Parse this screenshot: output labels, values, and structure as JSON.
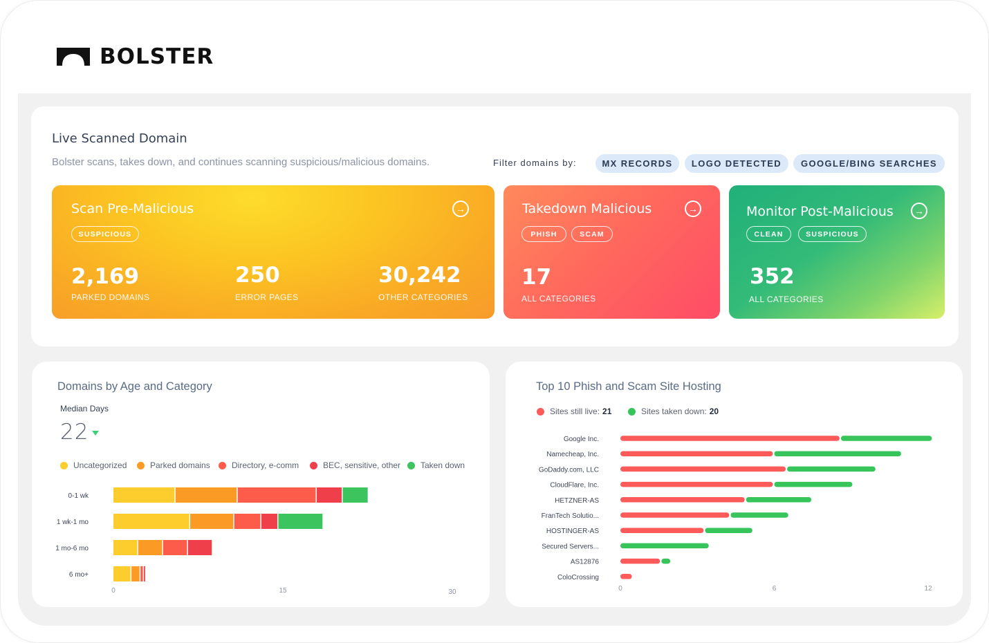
{
  "brand": {
    "name": "BOLSTER"
  },
  "live": {
    "title": "Live Scanned Domain",
    "subtitle": "Bolster scans, takes down, and continues scanning suspicious/malicious domains.",
    "filter_label": "Filter domains by:",
    "filters": [
      "MX RECORDS",
      "LOGO DETECTED",
      "GOOGLE/BING SEARCHES"
    ]
  },
  "cards": {
    "pre": {
      "title": "Scan Pre-Malicious",
      "tags": [
        "SUSPICIOUS"
      ],
      "stats": [
        {
          "value": "2,169",
          "label": "PARKED DOMAINS"
        },
        {
          "value": "250",
          "label": "ERROR PAGES"
        },
        {
          "value": "30,242",
          "label": "OTHER CATEGORIES"
        }
      ]
    },
    "takedown": {
      "title": "Takedown Malicious",
      "tags": [
        "PHISH",
        "SCAM"
      ],
      "stats": [
        {
          "value": "17",
          "label": "ALL CATEGORIES"
        }
      ]
    },
    "post": {
      "title": "Monitor Post-Malicious",
      "tags": [
        "CLEAN",
        "SUSPICIOUS"
      ],
      "stats": [
        {
          "value": "352",
          "label": "ALL CATEGORIES"
        }
      ]
    },
    "arrow_icon": "arrow-right-circle-icon"
  },
  "age_chart": {
    "title": "Domains by Age and Category",
    "median_label": "Median Days",
    "median_value": "22",
    "median_trend": "down",
    "colors": {
      "Uncategorized": "#fdcd2e",
      "Parked domains": "#fb9a24",
      "Directory, e-comm": "#fd5c4a",
      "BEC, sensitive, other": "#ee3f4b",
      "Taken down": "#3cc45f"
    }
  },
  "hosting_chart": {
    "title": "Top 10 Phish and Scam Site Hosting",
    "live_label": "Sites still live:",
    "live_value": "21",
    "down_label": "Sites taken down:",
    "down_value": "20",
    "live_color": "#fd5a5a",
    "down_color": "#37c45a"
  },
  "chart_data": [
    {
      "type": "bar",
      "orientation": "horizontal",
      "stacked": true,
      "title": "Domains by Age and Category",
      "categories": [
        "0-1 wk",
        "1 wk-1 mo",
        "1 mo-6 mo",
        "6 mo+"
      ],
      "series": [
        {
          "name": "Uncategorized",
          "values": [
            5.5,
            6.8,
            2.2,
            1.6
          ]
        },
        {
          "name": "Parked domains",
          "values": [
            5.5,
            3.9,
            2.2,
            0.8
          ]
        },
        {
          "name": "Directory, e-comm",
          "values": [
            7.0,
            2.4,
            2.2,
            0.3
          ]
        },
        {
          "name": "BEC, sensitive, other",
          "values": [
            2.3,
            1.5,
            2.2,
            0.2
          ]
        },
        {
          "name": "Taken down",
          "values": [
            2.3,
            4.0,
            0,
            0
          ]
        }
      ],
      "xticks": [
        "0",
        "15",
        "30"
      ],
      "xlim": [
        0,
        30
      ]
    },
    {
      "type": "bar",
      "orientation": "horizontal",
      "stacked": true,
      "title": "Top 10 Phish and Scam Site Hosting",
      "categories": [
        "Google Inc.",
        "Namecheap, Inc.",
        "GoDaddy.com, LLC",
        "CloudFlare, Inc.",
        "HETZNER-AS",
        "FranTech Solutio...",
        "HOSTINGER-AS",
        "Secured Servers...",
        "AS12876",
        "ColoCrossing"
      ],
      "series": [
        {
          "name": "Sites still live",
          "values": [
            8.6,
            6.0,
            6.5,
            6.0,
            4.9,
            4.3,
            3.3,
            0,
            1.6,
            0.5
          ]
        },
        {
          "name": "Sites taken down",
          "values": [
            3.6,
            5.0,
            3.5,
            3.1,
            2.6,
            2.3,
            1.9,
            3.5,
            0.4,
            0
          ]
        }
      ],
      "xticks": [
        "0",
        "6",
        "12"
      ],
      "xlim": [
        0,
        12
      ]
    }
  ]
}
